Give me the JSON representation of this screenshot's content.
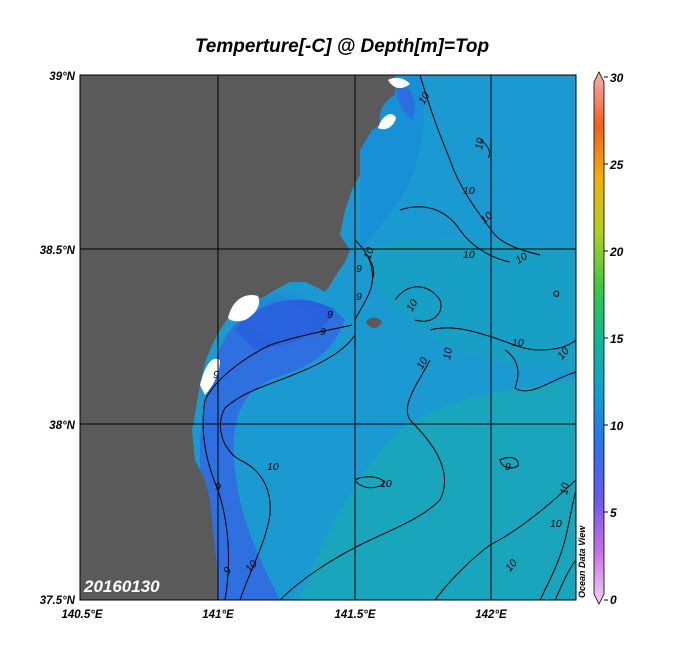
{
  "title": "Temperture[-C] @ Depth[m]=Top",
  "date_label": "20160130",
  "credit": "Ocean Data View",
  "colors": {
    "land": "#5a5a5a",
    "sea_cold": "#2f6fe0",
    "sea_mid": "#1a8ed8",
    "sea_warm": "#18a8b0",
    "no_data": "#ffffff",
    "grid": "#000000"
  },
  "map": {
    "lon_range": [
      140.5,
      142.3
    ],
    "lat_range": [
      37.5,
      39.0
    ],
    "lon_ticks": [
      "140.5°E",
      "141°E",
      "141.5°E",
      "142°E"
    ],
    "lat_ticks": [
      "39°N",
      "38.5°N",
      "38°N",
      "37.5°N"
    ]
  },
  "colorbar": {
    "min": 0,
    "max": 30,
    "ticks": [
      "30",
      "25",
      "20",
      "15",
      "10",
      "5",
      "0"
    ]
  },
  "contour_labels": [
    {
      "text": "10"
    },
    {
      "text": "10"
    },
    {
      "text": "10"
    },
    {
      "text": "10"
    },
    {
      "text": "10"
    },
    {
      "text": "10"
    },
    {
      "text": "10"
    },
    {
      "text": "10"
    },
    {
      "text": "10"
    },
    {
      "text": "10"
    },
    {
      "text": "10"
    },
    {
      "text": "10"
    },
    {
      "text": "9"
    },
    {
      "text": "9"
    },
    {
      "text": "9"
    },
    {
      "text": "9"
    },
    {
      "text": "9"
    },
    {
      "text": "9"
    },
    {
      "text": "9"
    },
    {
      "text": "9"
    },
    {
      "text": "10"
    },
    {
      "text": "10"
    }
  ]
}
